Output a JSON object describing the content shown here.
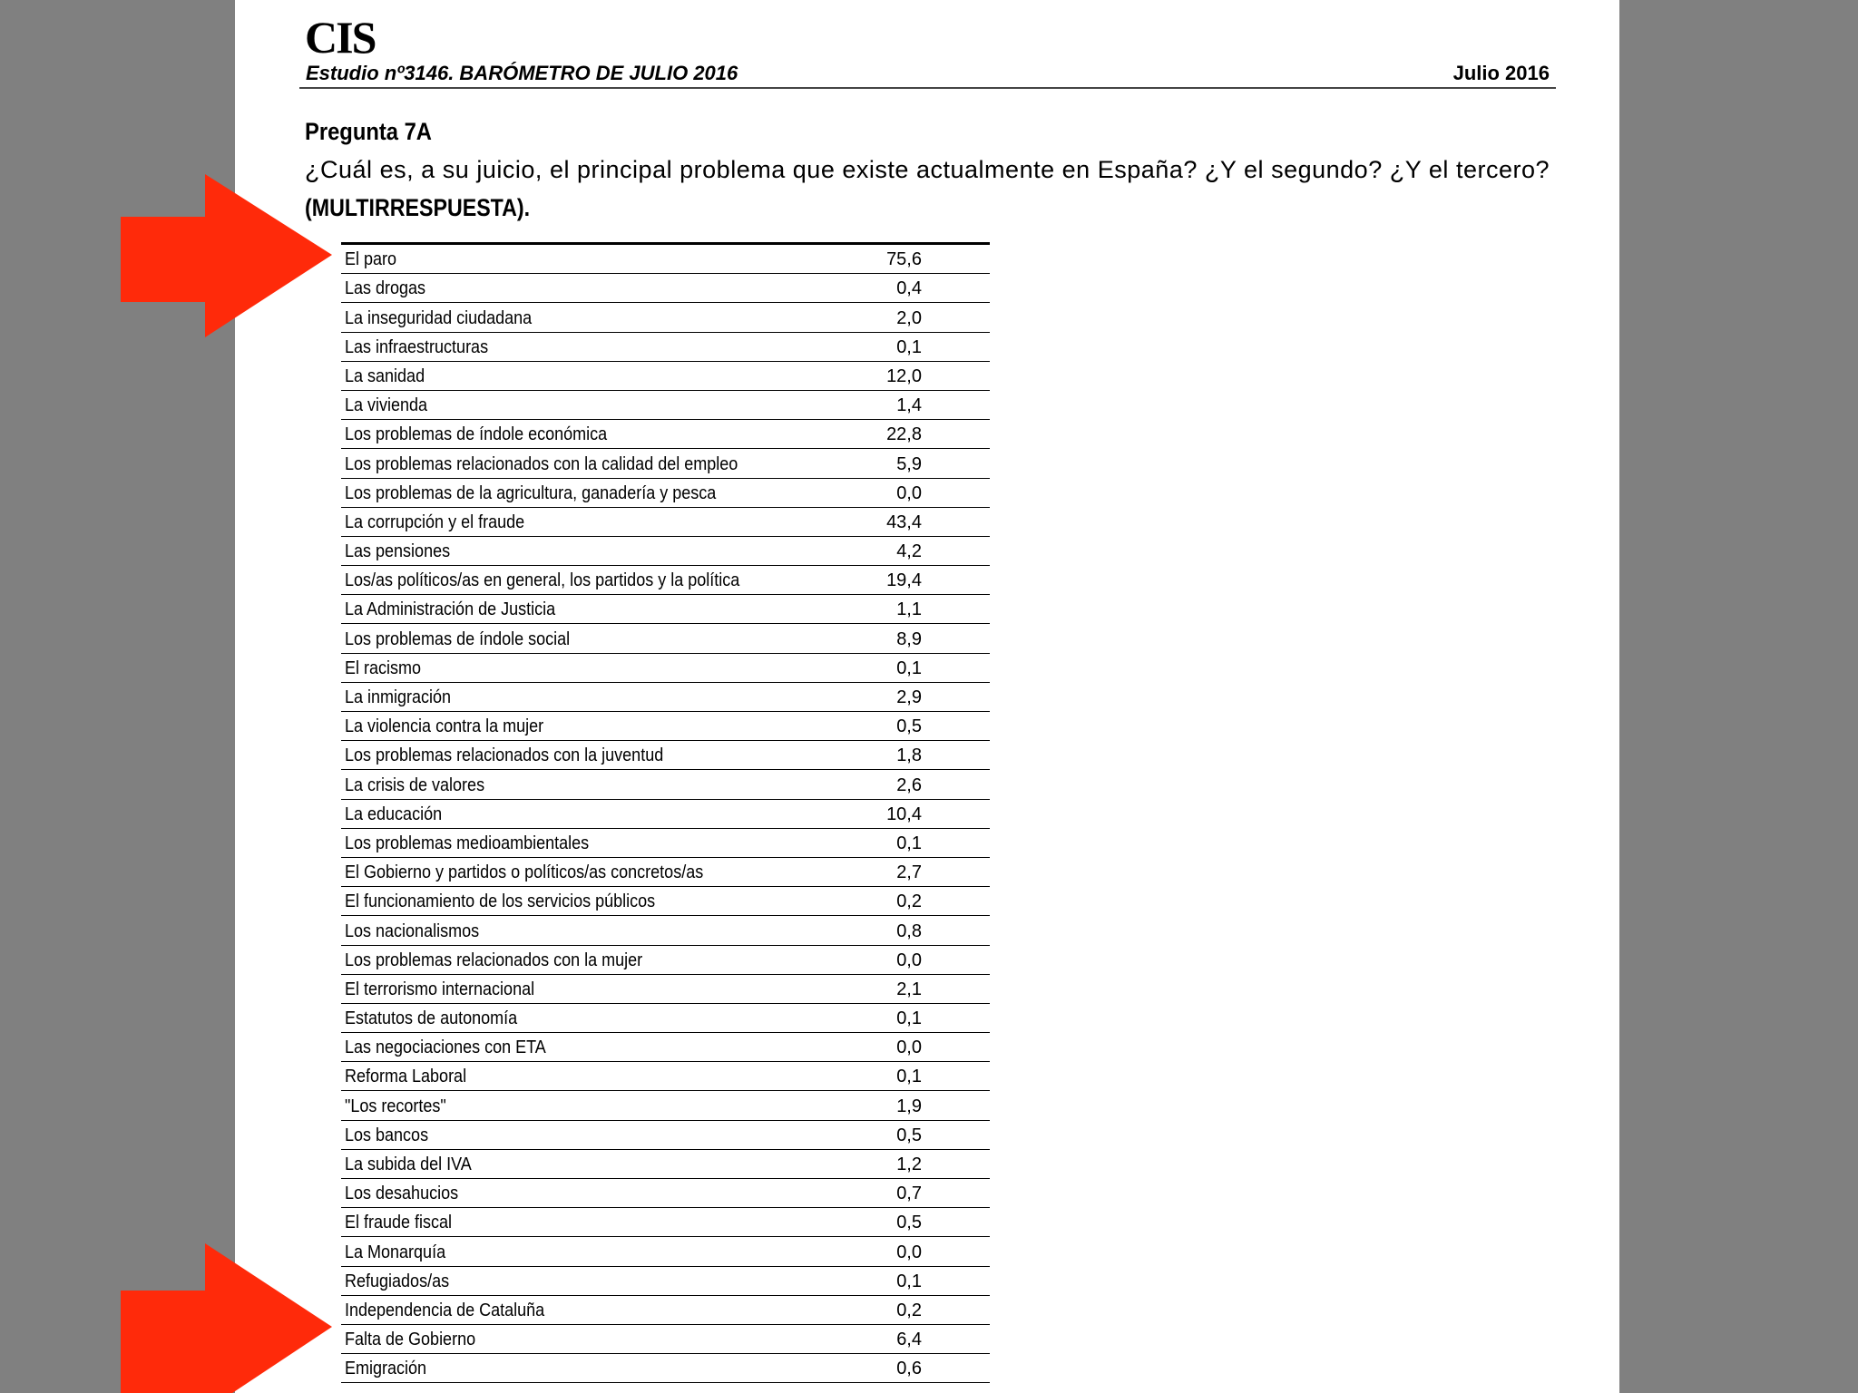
{
  "header": {
    "logo": "CIS",
    "study": "Estudio nº3146. BARÓMETRO DE JULIO 2016",
    "date": "Julio 2016"
  },
  "question": {
    "label": "Pregunta 7A",
    "text": "¿Cuál es, a su juicio, el principal problema que existe actualmente en España? ¿Y el segundo? ¿Y el tercero?",
    "note": "(MULTIRRESPUESTA)."
  },
  "table": {
    "rows": [
      [
        "El paro",
        "75,6"
      ],
      [
        "Las drogas",
        "0,4"
      ],
      [
        "La inseguridad ciudadana",
        "2,0"
      ],
      [
        "Las infraestructuras",
        "0,1"
      ],
      [
        "La sanidad",
        "12,0"
      ],
      [
        "La vivienda",
        "1,4"
      ],
      [
        "Los problemas de índole económica",
        "22,8"
      ],
      [
        "Los problemas relacionados con la calidad del empleo",
        "5,9"
      ],
      [
        "Los problemas de la agricultura, ganadería y pesca",
        "0,0"
      ],
      [
        "La corrupción y el fraude",
        "43,4"
      ],
      [
        "Las pensiones",
        "4,2"
      ],
      [
        "Los/as políticos/as en general, los partidos y la política",
        "19,4"
      ],
      [
        "La Administración de Justicia",
        "1,1"
      ],
      [
        "Los problemas de índole social",
        "8,9"
      ],
      [
        "El racismo",
        "0,1"
      ],
      [
        "La inmigración",
        "2,9"
      ],
      [
        "La violencia contra la mujer",
        "0,5"
      ],
      [
        "Los problemas relacionados con la juventud",
        "1,8"
      ],
      [
        "La crisis de valores",
        "2,6"
      ],
      [
        "La educación",
        "10,4"
      ],
      [
        "Los problemas medioambientales",
        "0,1"
      ],
      [
        "El Gobierno y partidos o políticos/as concretos/as",
        "2,7"
      ],
      [
        "El funcionamiento de los servicios públicos",
        "0,2"
      ],
      [
        "Los nacionalismos",
        "0,8"
      ],
      [
        "Los problemas relacionados con la mujer",
        "0,0"
      ],
      [
        "El terrorismo internacional",
        "2,1"
      ],
      [
        "Estatutos de autonomía",
        "0,1"
      ],
      [
        "Las negociaciones con ETA",
        "0,0"
      ],
      [
        "Reforma Laboral",
        "0,1"
      ],
      [
        "\"Los recortes\"",
        "1,9"
      ],
      [
        "Los bancos",
        "0,5"
      ],
      [
        "La subida del IVA",
        "1,2"
      ],
      [
        "Los desahucios",
        "0,7"
      ],
      [
        "El fraude fiscal",
        "0,5"
      ],
      [
        "La Monarquía",
        "0,0"
      ],
      [
        "Refugiados/as",
        "0,1"
      ],
      [
        "Independencia de Cataluña",
        "0,2"
      ],
      [
        "Falta de Gobierno",
        "6,4"
      ],
      [
        "Emigración",
        "0,6"
      ]
    ]
  }
}
